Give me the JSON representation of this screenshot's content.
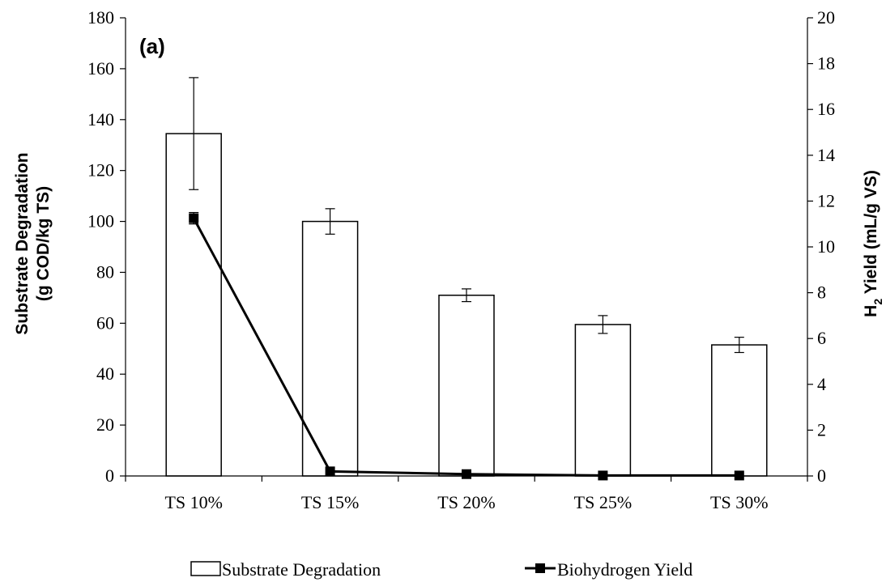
{
  "chart_data": {
    "type": "bar",
    "panel_label": "(a)",
    "categories": [
      "TS 10%",
      "TS 15%",
      "TS 20%",
      "TS 25%",
      "TS 30%"
    ],
    "ylabel_left_line1": "Substrate Degradation",
    "ylabel_left_line2": "(g COD/kg TS)",
    "ylabel_right_prefix": "H",
    "ylabel_right_sub": "2",
    "ylabel_right_suffix": " Yield (mL/g VS)",
    "ylim_left": [
      0,
      180
    ],
    "yticks_left": [
      0,
      20,
      40,
      60,
      80,
      100,
      120,
      140,
      160,
      180
    ],
    "ylim_right": [
      0,
      20
    ],
    "yticks_right": [
      0,
      2,
      4,
      6,
      8,
      10,
      12,
      14,
      16,
      18,
      20
    ],
    "grid": false,
    "legend_position": "bottom",
    "series": [
      {
        "name": "Substrate Degradation",
        "kind": "bar",
        "axis": "left",
        "values": [
          134.5,
          100,
          71,
          59.5,
          51.5
        ],
        "errors": [
          22,
          5,
          2.5,
          3.5,
          3
        ]
      },
      {
        "name": "Biohydrogen Yield",
        "kind": "line",
        "axis": "right",
        "values": [
          11.25,
          0.2,
          0.08,
          0.02,
          0.02
        ],
        "errors": [
          0.25,
          0.05,
          0.03,
          0.02,
          0.02
        ]
      }
    ]
  }
}
